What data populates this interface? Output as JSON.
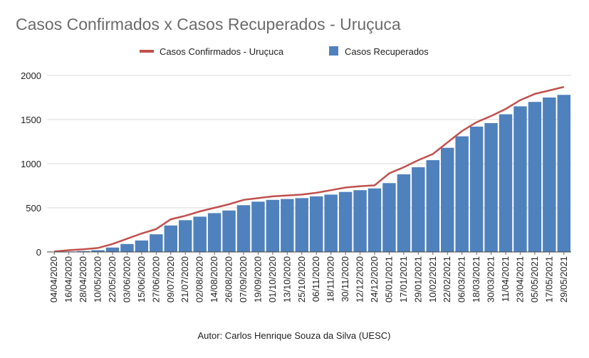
{
  "chart_data": {
    "type": "bar",
    "title": "Casos Confirmados x Casos Recuperados - Uruçuca",
    "xlabel": "",
    "ylabel": "",
    "ylim": [
      0,
      2000
    ],
    "yticks": [
      0,
      500,
      1000,
      1500,
      2000
    ],
    "grid": true,
    "legend_position": "top",
    "author": "Autor: Carlos Henrique Souza da Silva (UESC)",
    "categories": [
      "04/04/2020",
      "16/04/2020",
      "28/04/2020",
      "10/05/2020",
      "22/05/2020",
      "03/06/2020",
      "15/06/2020",
      "27/06/2020",
      "09/07/2020",
      "21/07/2020",
      "02/08/2020",
      "14/08/2020",
      "26/08/2020",
      "07/09/2020",
      "19/09/2020",
      "01/10/2020",
      "13/10/2020",
      "25/10/2020",
      "06/11/2020",
      "18/11/2020",
      "30/11/2020",
      "12/12/2020",
      "24/12/2020",
      "05/01/2021",
      "17/01/2021",
      "29/01/2021",
      "10/02/2021",
      "22/02/2021",
      "06/03/2021",
      "18/03/2021",
      "30/03/2021",
      "11/04/2021",
      "23/04/2021",
      "05/05/2021",
      "17/05/2021",
      "29/05/2021"
    ],
    "series": [
      {
        "name": "Casos Confirmados - Uruçuca",
        "type": "line",
        "color": "#c0504d",
        "values": [
          5,
          20,
          30,
          45,
          90,
          150,
          210,
          260,
          370,
          410,
          460,
          500,
          540,
          590,
          610,
          630,
          640,
          650,
          670,
          700,
          730,
          745,
          755,
          890,
          960,
          1040,
          1110,
          1240,
          1370,
          1470,
          1540,
          1620,
          1720,
          1790,
          1830,
          1870
        ]
      },
      {
        "name": "Casos Recuperados",
        "type": "bar",
        "color": "#4f81bd",
        "values": [
          0,
          5,
          10,
          20,
          50,
          90,
          130,
          200,
          300,
          360,
          400,
          440,
          470,
          530,
          570,
          590,
          600,
          610,
          630,
          650,
          680,
          700,
          720,
          780,
          880,
          960,
          1040,
          1180,
          1310,
          1420,
          1460,
          1560,
          1650,
          1700,
          1750,
          1780
        ]
      }
    ]
  }
}
